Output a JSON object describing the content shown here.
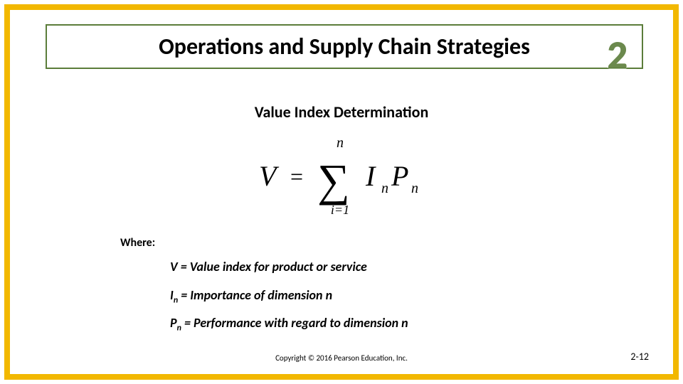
{
  "frame": {
    "border_color": "#f2b800",
    "border_width": 8,
    "title_box_border_color": "#5b7d3a"
  },
  "title": "Operations and Supply Chain Strategies",
  "chapter_number": "2",
  "subtitle": "Value Index Determination",
  "formula": {
    "lhs": "V",
    "sum_upper": "n",
    "sum_lower": "i=1",
    "term_I": "I",
    "term_I_sub": "n",
    "term_P": "P",
    "term_P_sub": "n"
  },
  "where_label": "Where:",
  "definitions": [
    {
      "sym": "V",
      "sub": "",
      "desc": " = Value index for product or service"
    },
    {
      "sym": "I",
      "sub": "n",
      "desc": " = Importance of dimension n"
    },
    {
      "sym": "P",
      "sub": "n",
      "desc": " = Performance with regard to dimension n"
    }
  ],
  "copyright": "Copyright © 2016 Pearson Education, Inc.",
  "page_number": "2-12"
}
